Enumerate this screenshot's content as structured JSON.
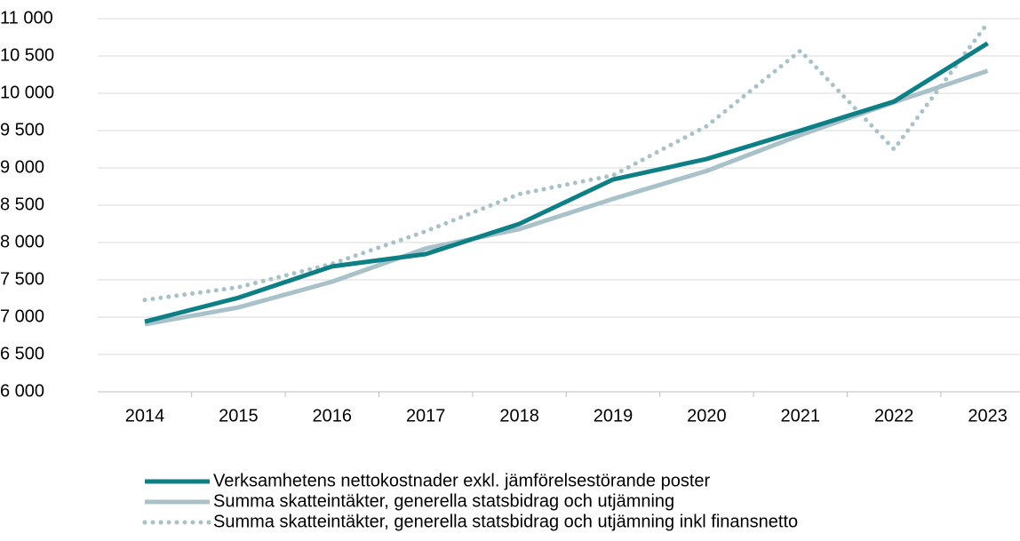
{
  "chart_data": {
    "type": "line",
    "categories": [
      "2014",
      "2015",
      "2016",
      "2017",
      "2018",
      "2019",
      "2020",
      "2021",
      "2022",
      "2023"
    ],
    "series": [
      {
        "name": "Verksamhetens nettokostnader exkl. jämförelsestörande poster",
        "color": "#0f7f86",
        "style": "solid",
        "values": [
          6940,
          7260,
          7680,
          7845,
          8250,
          8845,
          9120,
          9500,
          9890,
          10670
        ]
      },
      {
        "name": "Summa skatteintäkter, generella statsbidrag och utjämning",
        "color": "#a9c1c8",
        "style": "solid",
        "values": [
          6905,
          7130,
          7475,
          7920,
          8180,
          8585,
          8960,
          9440,
          9880,
          10300
        ]
      },
      {
        "name": "Summa skatteintäkter, generella statsbidrag och utjämning inkl finansnetto",
        "color": "#a9c1c8",
        "style": "dotted",
        "values": [
          7230,
          7400,
          7715,
          8150,
          8650,
          8900,
          9560,
          10570,
          9250,
          10940
        ]
      }
    ],
    "ylim": [
      6000,
      11000
    ],
    "yticks": [
      {
        "value": 6000,
        "label": "6 000"
      },
      {
        "value": 6500,
        "label": "6 500"
      },
      {
        "value": 7000,
        "label": "7 000"
      },
      {
        "value": 7500,
        "label": "7 500"
      },
      {
        "value": 8000,
        "label": "8 000"
      },
      {
        "value": 8500,
        "label": "8 500"
      },
      {
        "value": 9000,
        "label": "9 000"
      },
      {
        "value": 9500,
        "label": "9 500"
      },
      {
        "value": 10000,
        "label": "10 000"
      },
      {
        "value": 10500,
        "label": "10 500"
      },
      {
        "value": 11000,
        "label": "11 000"
      }
    ],
    "grid": true,
    "legend": "bottom"
  }
}
